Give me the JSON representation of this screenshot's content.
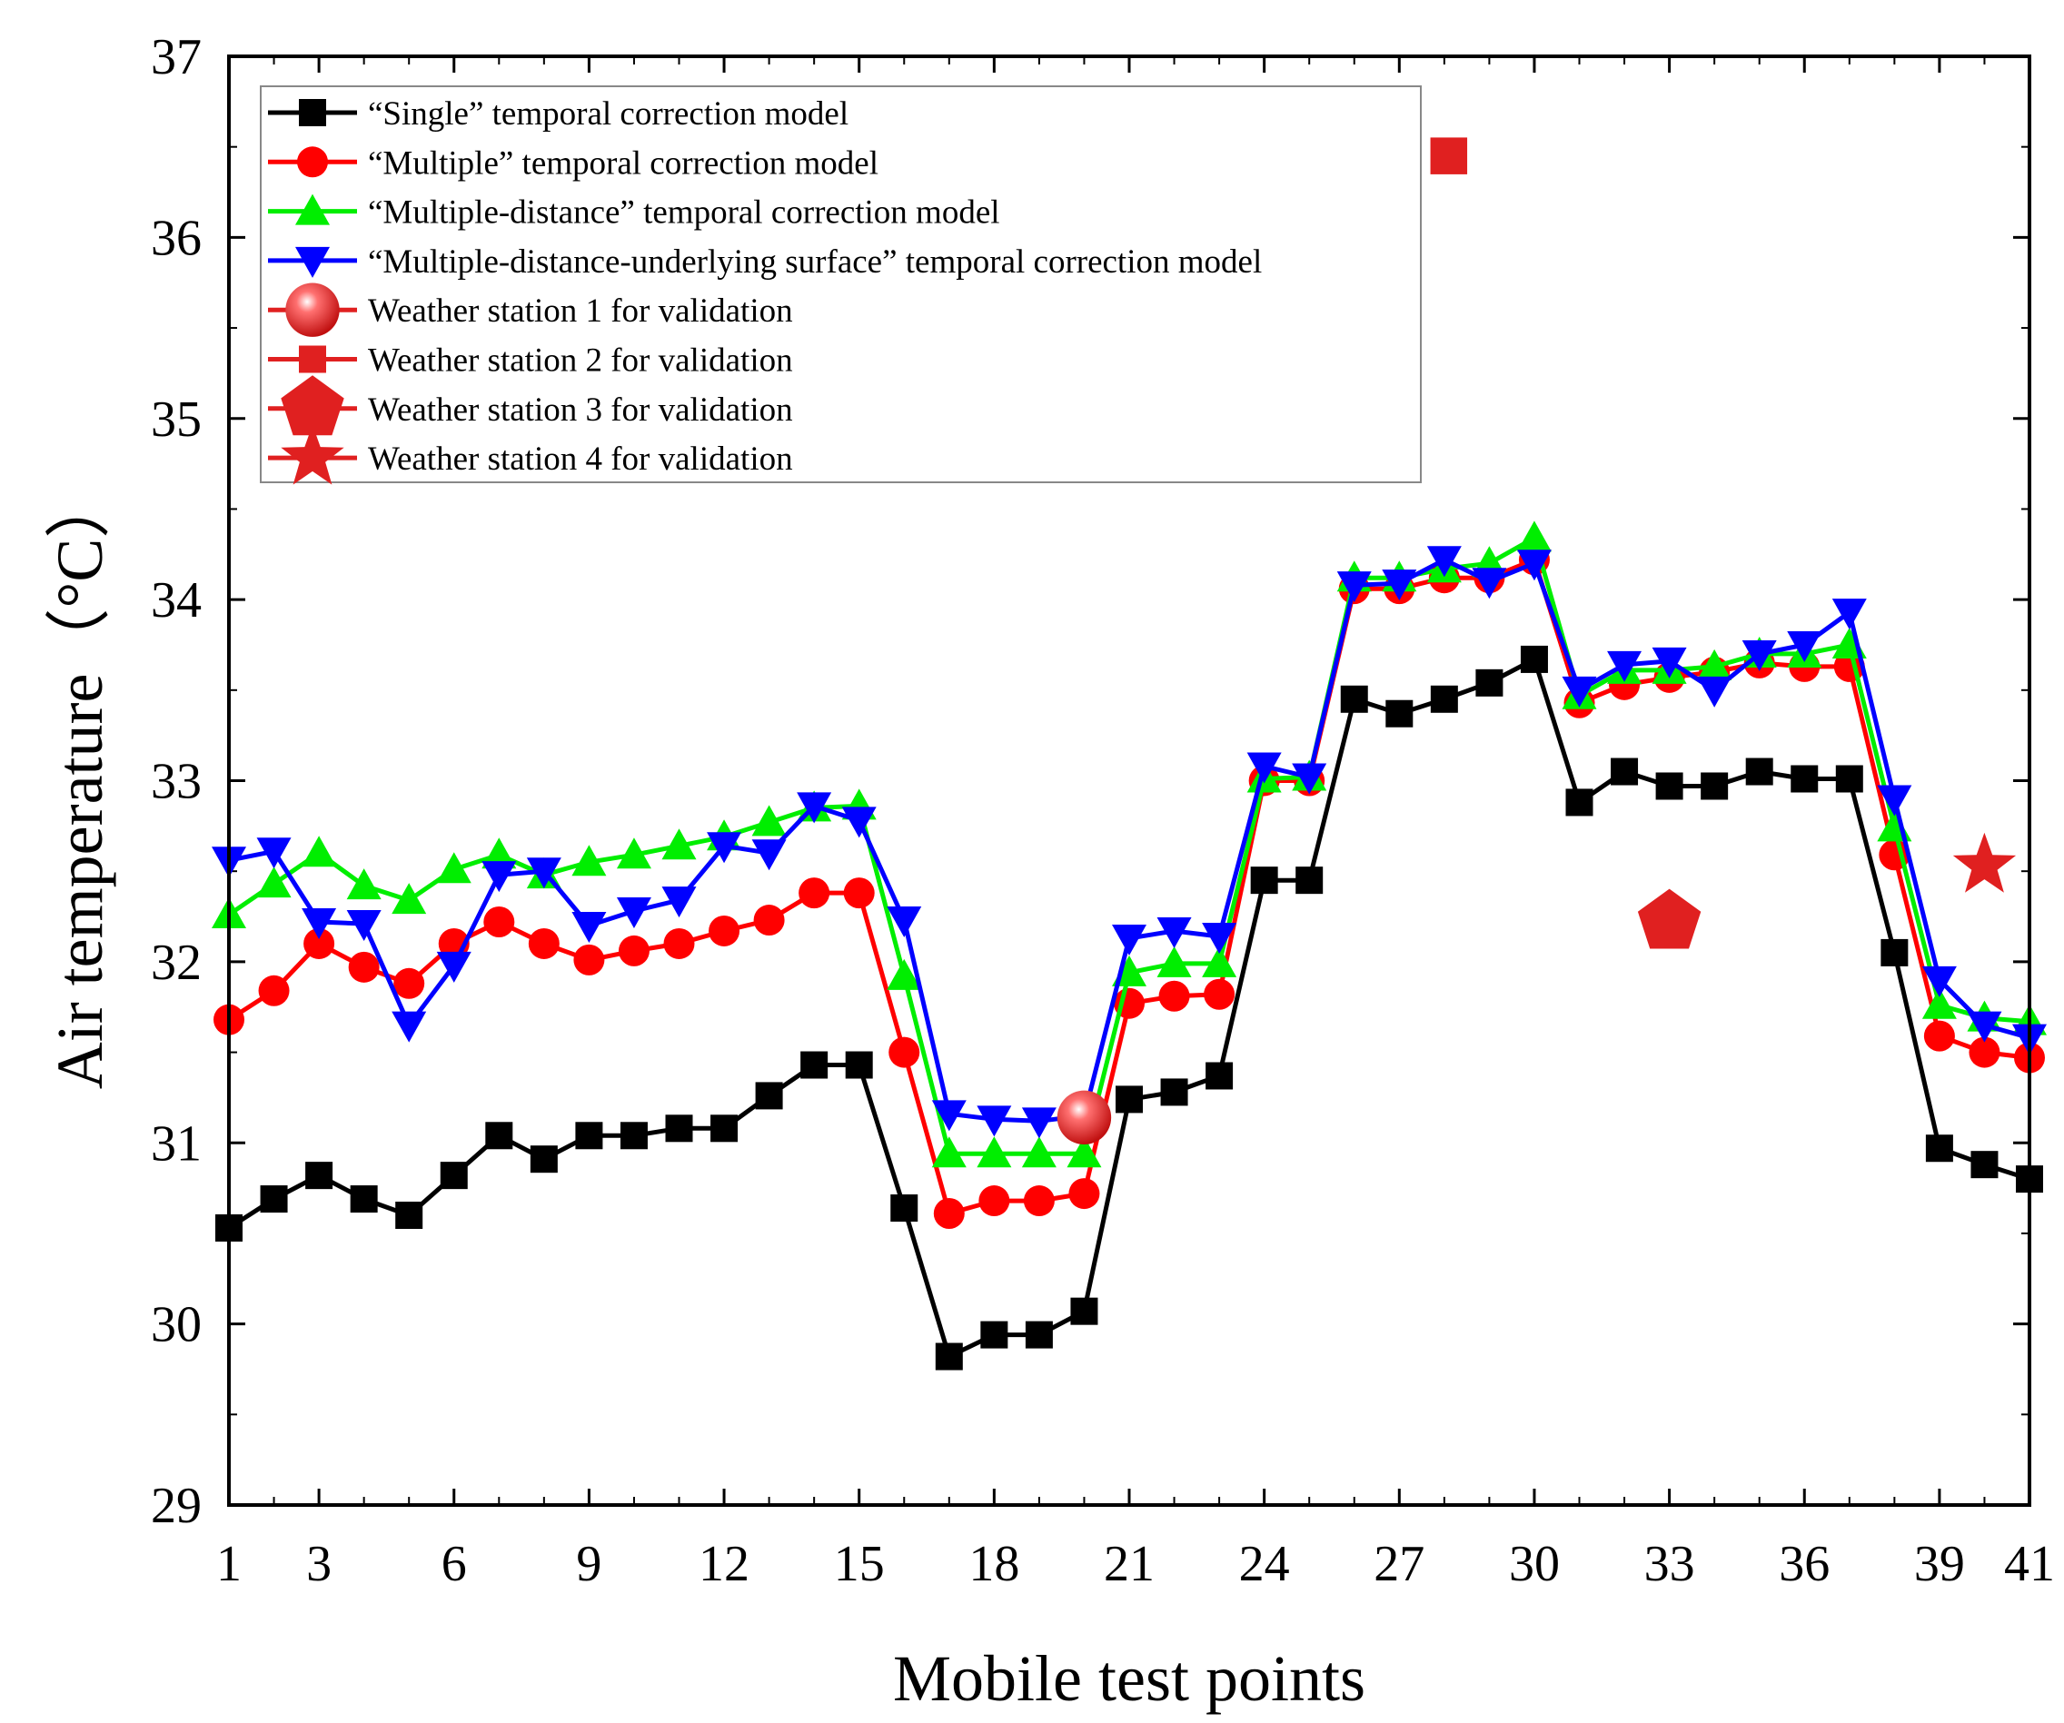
{
  "chart_data": {
    "type": "line",
    "title": "",
    "xlabel": "Mobile test points",
    "ylabel": "Air temperature（°C）",
    "xlim": [
      1,
      41
    ],
    "ylim": [
      29,
      37
    ],
    "x_ticks": [
      1,
      3,
      6,
      9,
      12,
      15,
      18,
      21,
      24,
      27,
      30,
      33,
      36,
      39,
      41
    ],
    "y_ticks": [
      29,
      30,
      31,
      32,
      33,
      34,
      35,
      36,
      37
    ],
    "legend_position": "top-left",
    "x": [
      1,
      2,
      3,
      4,
      5,
      6,
      7,
      8,
      9,
      10,
      11,
      12,
      13,
      14,
      15,
      16,
      17,
      18,
      19,
      20,
      21,
      22,
      23,
      24,
      25,
      26,
      27,
      28,
      29,
      30,
      31,
      32,
      33,
      34,
      35,
      36,
      37,
      38,
      39,
      40,
      41
    ],
    "series": [
      {
        "name": "“Single” temporal correction model",
        "color": "#000000",
        "marker": "square",
        "values": [
          30.53,
          30.69,
          30.82,
          30.69,
          30.6,
          30.82,
          31.04,
          30.91,
          31.04,
          31.04,
          31.08,
          31.08,
          31.26,
          31.43,
          31.43,
          30.64,
          29.82,
          29.94,
          29.94,
          30.07,
          31.24,
          31.28,
          31.37,
          32.45,
          32.45,
          33.45,
          33.37,
          33.45,
          33.54,
          33.67,
          32.88,
          33.05,
          32.97,
          32.97,
          33.05,
          33.01,
          33.01,
          32.05,
          30.97,
          30.88,
          30.8
        ]
      },
      {
        "name": "“Multiple” temporal correction model",
        "color": "#ff0000",
        "marker": "circle",
        "values": [
          31.68,
          31.84,
          32.1,
          31.97,
          31.88,
          32.1,
          32.22,
          32.1,
          32.01,
          32.06,
          32.1,
          32.17,
          32.23,
          32.38,
          32.38,
          31.5,
          30.61,
          30.68,
          30.68,
          30.72,
          31.77,
          31.81,
          31.82,
          33.0,
          33.0,
          34.06,
          34.06,
          34.12,
          34.12,
          34.22,
          33.43,
          33.53,
          33.57,
          33.6,
          33.65,
          33.63,
          33.63,
          32.59,
          31.59,
          31.5,
          31.47
        ]
      },
      {
        "name": "“Multiple-distance” temporal correction model",
        "color": "#00ee00",
        "marker": "triangle-up",
        "values": [
          32.26,
          32.43,
          32.6,
          32.42,
          32.34,
          32.51,
          32.59,
          32.48,
          32.55,
          32.59,
          32.64,
          32.69,
          32.77,
          32.85,
          32.86,
          31.92,
          30.94,
          30.94,
          30.94,
          30.94,
          31.94,
          31.99,
          31.99,
          33.01,
          33.02,
          34.12,
          34.12,
          34.17,
          34.2,
          34.34,
          33.47,
          33.61,
          33.61,
          33.63,
          33.7,
          33.7,
          33.75,
          32.74,
          31.76,
          31.69,
          31.67
        ]
      },
      {
        "name": "“Multiple-distance-underlying surface” temporal correction model",
        "color": "#0000ff",
        "marker": "triangle-down",
        "values": [
          32.56,
          32.61,
          32.22,
          32.21,
          31.65,
          31.98,
          32.48,
          32.5,
          32.2,
          32.28,
          32.34,
          32.64,
          32.6,
          32.86,
          32.78,
          32.23,
          31.16,
          31.13,
          31.12,
          31.15,
          32.13,
          32.17,
          32.14,
          33.08,
          33.02,
          34.08,
          34.09,
          34.22,
          34.1,
          34.2,
          33.5,
          33.64,
          33.66,
          33.5,
          33.7,
          33.75,
          33.93,
          32.9,
          31.9,
          31.65,
          31.58
        ]
      }
    ],
    "stations": [
      {
        "name": "Weather station 1 for validation",
        "marker": "sphere",
        "color": "#e02020",
        "x": 20,
        "y": 31.14
      },
      {
        "name": "Weather station 2 for validation",
        "marker": "square",
        "color": "#e02020",
        "x": 28.1,
        "y": 36.45
      },
      {
        "name": "Weather station 3 for validation",
        "marker": "pentagon",
        "color": "#e02020",
        "x": 33,
        "y": 32.22
      },
      {
        "name": "Weather station 4 for validation",
        "marker": "star",
        "color": "#e02020",
        "x": 40,
        "y": 32.53
      }
    ]
  }
}
